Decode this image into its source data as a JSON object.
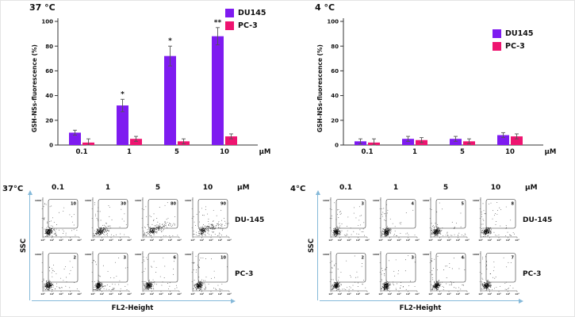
{
  "colors": {
    "du145": "#7e1bf0",
    "pc3": "#ee1470",
    "axis": "#333333",
    "error_bar": "#555555",
    "axis_arrow": "#85b9d9",
    "dots": "#000000"
  },
  "chart_data": [
    {
      "type": "bar",
      "title": "37 °C",
      "ylabel": "GSH-NSs-fluorescence (%)",
      "xunit": "μM",
      "categories": [
        "0.1",
        "1",
        "5",
        "10"
      ],
      "ylim": [
        0,
        100
      ],
      "yticks": [
        0,
        20,
        40,
        60,
        80,
        100
      ],
      "legend_position": "top-right",
      "series": [
        {
          "name": "DU145",
          "color": "#7e1bf0",
          "values": [
            10,
            32,
            72,
            88
          ],
          "errors": [
            2,
            5,
            8,
            7
          ],
          "sig": [
            "",
            "*",
            "*",
            "**"
          ]
        },
        {
          "name": "PC-3",
          "color": "#ee1470",
          "values": [
            2,
            5,
            3,
            7
          ],
          "errors": [
            3,
            2,
            2,
            2
          ],
          "sig": [
            "",
            "",
            "",
            ""
          ]
        }
      ]
    },
    {
      "type": "bar",
      "title": "4 °C",
      "ylabel": "GSH-NSs-fluorescence (%)",
      "xunit": "μM",
      "categories": [
        "0.1",
        "1",
        "5",
        "10"
      ],
      "ylim": [
        0,
        100
      ],
      "yticks": [
        0,
        20,
        40,
        60,
        80,
        100
      ],
      "legend_position": "top-right",
      "series": [
        {
          "name": "DU145",
          "color": "#7e1bf0",
          "values": [
            3,
            5,
            5,
            8
          ],
          "errors": [
            2,
            2,
            2,
            2
          ],
          "sig": [
            "",
            "",
            "",
            ""
          ]
        },
        {
          "name": "PC-3",
          "color": "#ee1470",
          "values": [
            2,
            4,
            3,
            7
          ],
          "errors": [
            3,
            2,
            2,
            2
          ],
          "sig": [
            "",
            "",
            "",
            ""
          ]
        }
      ]
    },
    {
      "type": "scatter",
      "subtype": "flow-cytometry",
      "temp_label": "37°C",
      "col_headers": [
        "0.1",
        "1",
        "5",
        "10"
      ],
      "unit": "μM",
      "xlabel": "FL2-Height",
      "ylabel": "SSC",
      "y_tick": "1000",
      "x_ticks": [
        "10⁰",
        "10¹",
        "10²",
        "10³",
        "10⁴"
      ],
      "rows": [
        {
          "label": "DU-145",
          "gate_percentages": [
            10,
            30,
            80,
            90
          ]
        },
        {
          "label": "PC-3",
          "gate_percentages": [
            2,
            3,
            6,
            10
          ]
        }
      ]
    },
    {
      "type": "scatter",
      "subtype": "flow-cytometry",
      "temp_label": "4°C",
      "col_headers": [
        "0.1",
        "1",
        "5",
        "10"
      ],
      "unit": "μM",
      "xlabel": "FL2-Height",
      "ylabel": "SSC",
      "y_tick": "1000",
      "x_ticks": [
        "10⁰",
        "10¹",
        "10²",
        "10³",
        "10⁴"
      ],
      "rows": [
        {
          "label": "DU-145",
          "gate_percentages": [
            3,
            4,
            5,
            8
          ]
        },
        {
          "label": "PC-3",
          "gate_percentages": [
            2,
            3,
            4,
            7
          ]
        }
      ]
    }
  ]
}
